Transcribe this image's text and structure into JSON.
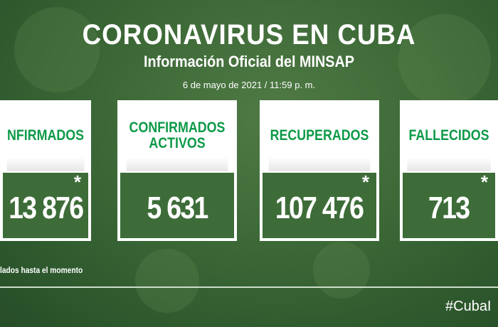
{
  "header": {
    "title": "CORONAVIRUS EN CUBA",
    "subtitle": "Información Oficial del MINSAP",
    "date": "6 de mayo de 2021 / 11:59 p. m."
  },
  "cards": [
    {
      "label": "NFIRMADOS",
      "value": "13 876",
      "asterisk": "*"
    },
    {
      "label": "CONFIRMADOS ACTIVOS",
      "value": "5 631",
      "asterisk": ""
    },
    {
      "label": "RECUPERADOS",
      "value": "107 476",
      "asterisk": "*"
    },
    {
      "label": "FALLECIDOS",
      "value": "713",
      "asterisk": "*"
    }
  ],
  "footnote": "lados hasta el momento",
  "hashtag": "#CubaI",
  "colors": {
    "accent": "#0e9a48",
    "background": "#3e6a38"
  }
}
